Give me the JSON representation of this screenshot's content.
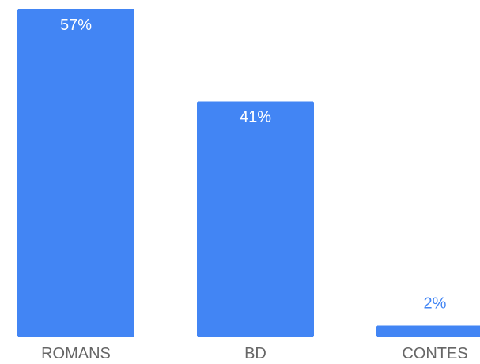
{
  "chart_data": {
    "type": "bar",
    "categories": [
      "ROMANS",
      "BD",
      "CONTES"
    ],
    "values": [
      57,
      41,
      2
    ],
    "value_labels": [
      "57%",
      "41%",
      "2%"
    ],
    "unit": "%",
    "title": "",
    "xlabel": "",
    "ylabel": "",
    "ylim": [
      0,
      57
    ],
    "grid": false,
    "legend": "none",
    "colors": {
      "bar": "#4285f4",
      "label_inside": "#ffffff",
      "label_outside": "#4285f4",
      "category_text": "#666666"
    }
  }
}
